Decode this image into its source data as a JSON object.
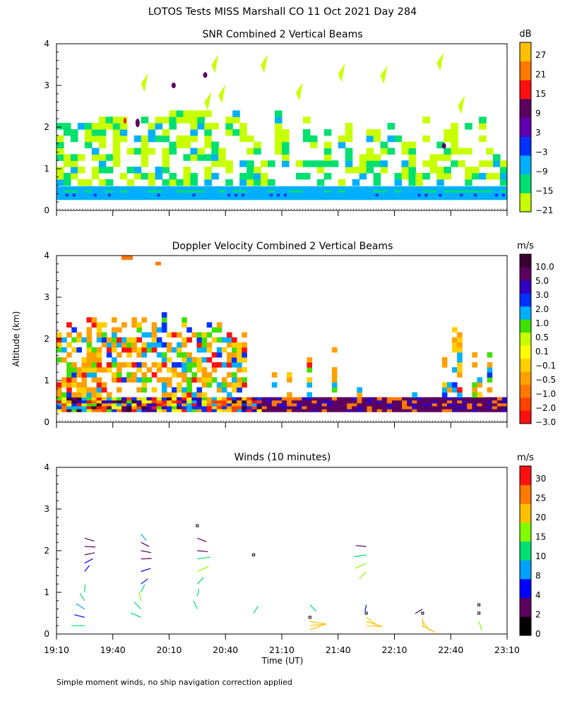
{
  "figure": {
    "title": "LOTOS Tests MISS Marshall CO  11 Oct 2021 Day 284",
    "ylabel": "Altitude (km)",
    "xlabel": "Time (UT)",
    "footnote": "Simple moment winds, no ship navigation correction applied"
  },
  "colors": {
    "snr": [
      "#c8ff00",
      "#00e070",
      "#00b0ff",
      "#0030ff",
      "#6000b0",
      "#5a0060",
      "#ff1010",
      "#ff7800",
      "#ffc000"
    ],
    "doppler": [
      "#ff1010",
      "#ff4000",
      "#ff7800",
      "#ffa000",
      "#ffd000",
      "#ffff00",
      "#c8ff00",
      "#40e000",
      "#00b0ff",
      "#0030ff",
      "#3000c0",
      "#5a0060",
      "#3a0030"
    ],
    "winds": [
      "#000000",
      "#5a0060",
      "#0000ff",
      "#00a0ff",
      "#00e070",
      "#80ff00",
      "#ffc000",
      "#ff7800",
      "#ff1010"
    ]
  },
  "chart_data": [
    {
      "type": "heatmap",
      "title": "SNR Combined 2 Vertical Beams",
      "ylim": [
        0,
        4
      ],
      "yticks": [
        "0",
        "1",
        "2",
        "3",
        "4"
      ],
      "colorbar_unit": "dB",
      "colorbar_labels": [
        "27",
        "21",
        "15",
        "9",
        "3",
        "−3",
        "−9",
        "−15",
        "−21"
      ],
      "description_layers": [
        {
          "alt_range_km": [
            0.25,
            0.6
          ],
          "dominant": "-9 to -3 dB"
        },
        {
          "alt_range_km": [
            0.6,
            2.2
          ],
          "dominant": "-21 to -15 dB"
        }
      ]
    },
    {
      "type": "heatmap",
      "title": "Doppler Velocity Combined 2 Vertical Beams",
      "ylim": [
        0,
        4
      ],
      "yticks": [
        "0",
        "1",
        "2",
        "3",
        "4"
      ],
      "colorbar_unit": "m/s",
      "colorbar_labels": [
        "10.0",
        "5.0",
        "3.0",
        "2.0",
        "1.0",
        "0.5",
        "0.1",
        "−0.1",
        "−0.5",
        "−1.0",
        "−2.0",
        "−3.0"
      ]
    },
    {
      "type": "scatter",
      "title": "Winds (10 minutes)",
      "ylim": [
        0,
        4
      ],
      "yticks": [
        "0",
        "1",
        "2",
        "3",
        "4"
      ],
      "x_ticks": [
        "19:10",
        "19:40",
        "20:10",
        "20:40",
        "21:10",
        "21:40",
        "22:10",
        "22:40",
        "23:10"
      ],
      "xlim_minutes_utc": [
        1150,
        1390
      ],
      "colorbar_unit": "m/s",
      "colorbar_labels": [
        "30",
        "25",
        "20",
        "15",
        "10",
        "8",
        "4",
        "2",
        "0"
      ],
      "profiles": [
        {
          "time": "19:25",
          "alt_km": [
            0.2,
            0.4,
            0.6,
            0.8,
            1.0,
            1.5,
            1.7,
            1.9,
            2.1,
            2.3
          ],
          "speed_ms": [
            12,
            5,
            8,
            12,
            10,
            4,
            4,
            3,
            3,
            3
          ]
        },
        {
          "time": "19:55",
          "alt_km": [
            0.4,
            0.6,
            0.8,
            1.0,
            1.2,
            1.5,
            1.8,
            2.0,
            2.2,
            2.4
          ],
          "speed_ms": [
            10,
            14,
            15,
            13,
            4,
            4,
            3,
            3,
            3,
            8
          ]
        },
        {
          "time": "20:25",
          "alt_km": [
            0.6,
            0.9,
            1.2,
            1.5,
            1.8,
            2.0,
            2.3,
            2.6
          ],
          "speed_ms": [
            14,
            12,
            10,
            15,
            12,
            3,
            3,
            1
          ]
        },
        {
          "time": "20:55",
          "alt_km": [
            0.5,
            1.9
          ],
          "speed_ms": [
            10,
            1
          ]
        },
        {
          "time": "21:25",
          "alt_km": [
            0.1,
            0.2,
            0.3,
            0.4,
            0.7
          ],
          "speed_ms": [
            24,
            24,
            22,
            1,
            10
          ]
        },
        {
          "time": "21:55",
          "alt_km": [
            0.2,
            0.3,
            0.4,
            0.5,
            0.7,
            1.5,
            1.7,
            1.9,
            2.1
          ],
          "speed_ms": [
            22,
            22,
            20,
            1,
            4,
            15,
            15,
            10,
            3
          ]
        },
        {
          "time": "22:25",
          "alt_km": [
            0.2,
            0.3,
            0.4,
            0.5,
            0.6
          ],
          "speed_ms": [
            24,
            24,
            24,
            1,
            3
          ]
        },
        {
          "time": "22:55",
          "alt_km": [
            0.3,
            0.5,
            0.7
          ],
          "speed_ms": [
            18,
            1,
            1
          ]
        }
      ]
    }
  ]
}
